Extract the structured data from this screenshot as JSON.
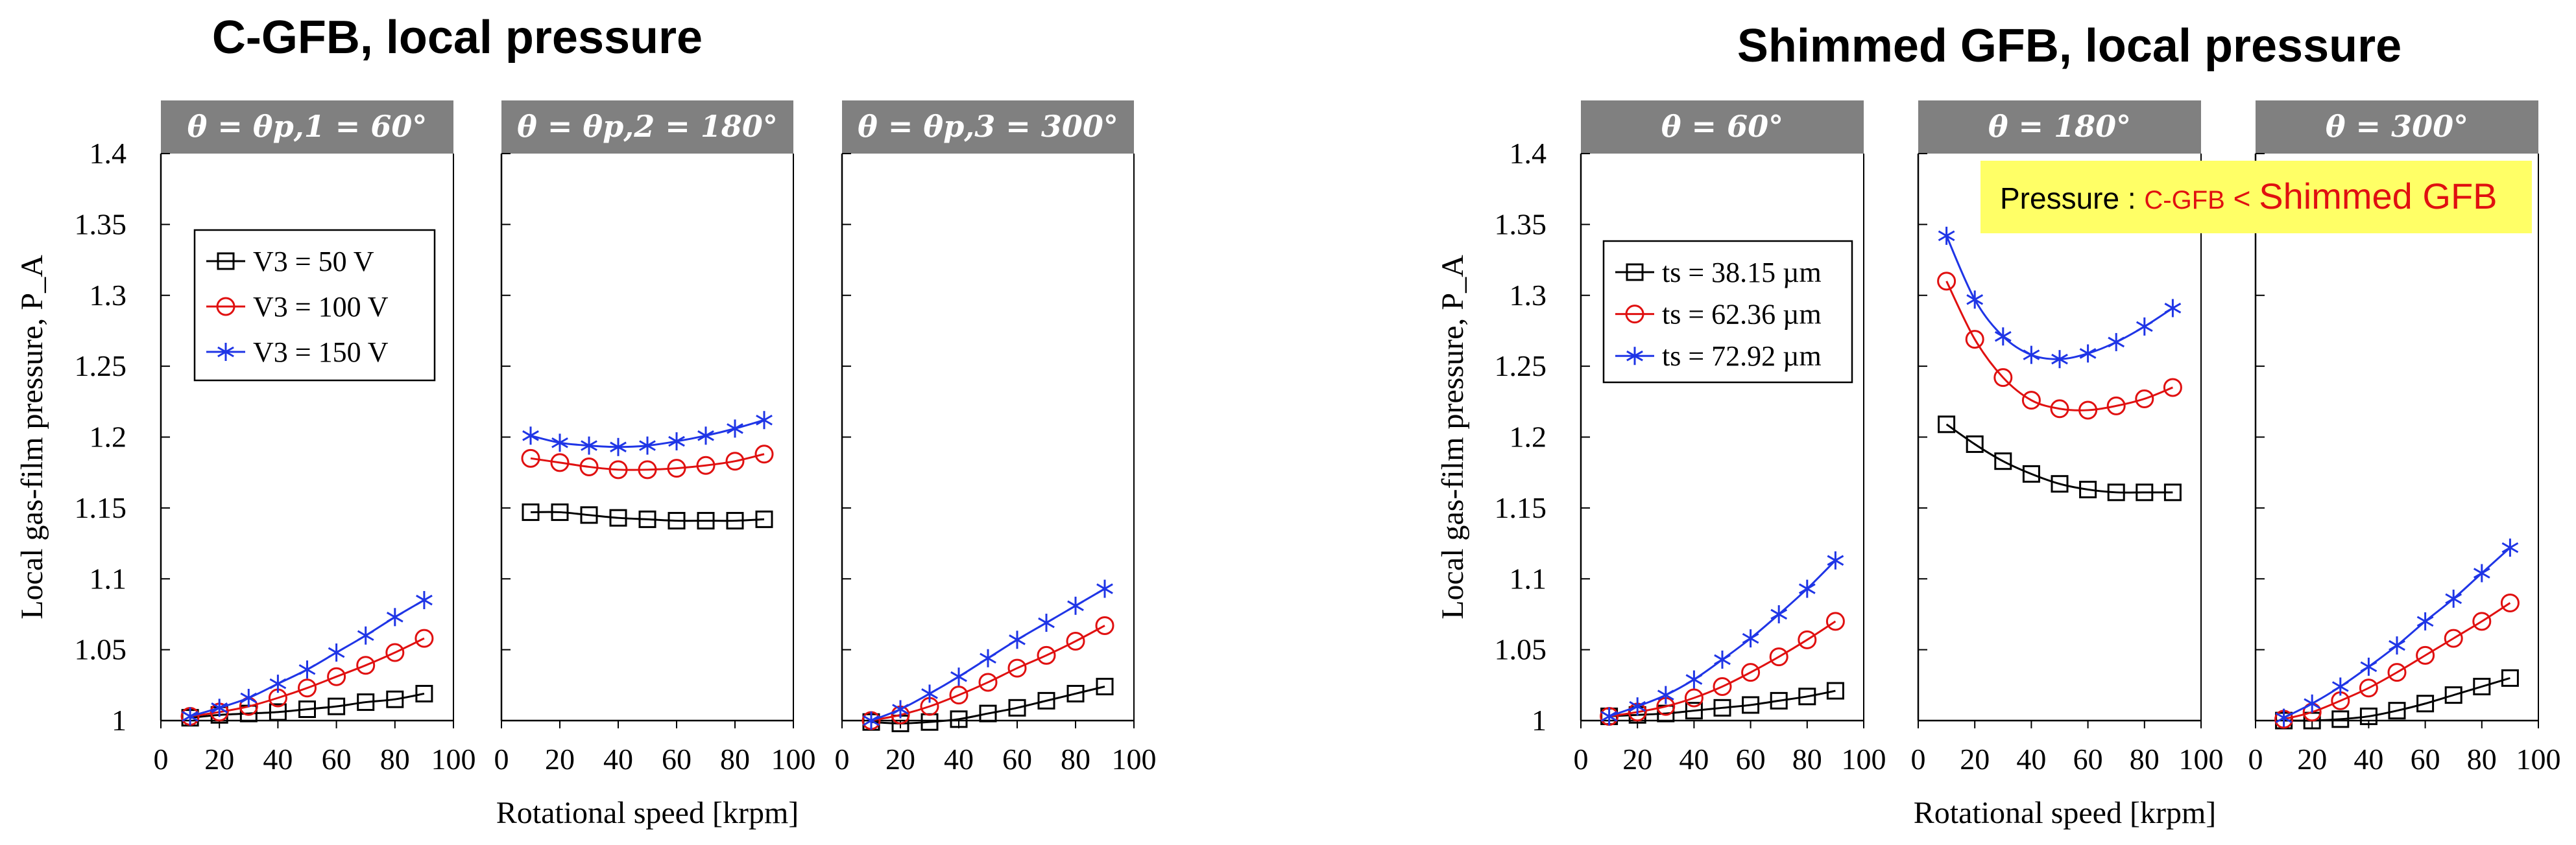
{
  "figure": {
    "left_title": "C-GFB, local pressure",
    "right_title": "Shimmed GFB, local pressure",
    "annotation": {
      "prefix": "Pressure : ",
      "c_gfb": "C-GFB",
      "lt": " < ",
      "shimmed": "Shimmed GFB"
    }
  },
  "chart_data": [
    {
      "type": "line",
      "group": "C-GFB, local pressure",
      "xlabel": "Rotational speed [krpm]",
      "ylabel": "Local gas-film pressure, P_A",
      "ylim": [
        1,
        1.4
      ],
      "yticks": [
        "1",
        "1.05",
        "1.1",
        "1.15",
        "1.2",
        "1.25",
        "1.3",
        "1.35",
        "1.4"
      ],
      "xlim": [
        0,
        100
      ],
      "xticks": [
        "0",
        "20",
        "40",
        "60",
        "80",
        "100"
      ],
      "x": [
        10,
        20,
        30,
        40,
        50,
        60,
        70,
        80,
        90
      ],
      "legend": [
        "V3 = 50 V",
        "V3 = 100 V",
        "V3 = 150 V"
      ],
      "panels": [
        {
          "title": "θ = θp,1 = 60°",
          "series": [
            {
              "name": "V3 = 50 V",
              "values": [
                1.002,
                1.004,
                1.005,
                1.006,
                1.008,
                1.01,
                1.013,
                1.015,
                1.019
              ]
            },
            {
              "name": "V3 = 100 V",
              "values": [
                1.003,
                1.006,
                1.01,
                1.016,
                1.023,
                1.031,
                1.039,
                1.048,
                1.058
              ]
            },
            {
              "name": "V3 = 150 V",
              "values": [
                1.003,
                1.009,
                1.016,
                1.026,
                1.036,
                1.048,
                1.06,
                1.073,
                1.085
              ]
            }
          ]
        },
        {
          "title": "θ = θp,2 = 180°",
          "series": [
            {
              "name": "V3 = 50 V",
              "values": [
                1.147,
                1.147,
                1.145,
                1.143,
                1.142,
                1.141,
                1.141,
                1.141,
                1.142
              ]
            },
            {
              "name": "V3 = 100 V",
              "values": [
                1.185,
                1.182,
                1.179,
                1.177,
                1.177,
                1.178,
                1.18,
                1.183,
                1.188
              ]
            },
            {
              "name": "V3 = 150 V",
              "values": [
                1.201,
                1.196,
                1.194,
                1.193,
                1.194,
                1.197,
                1.201,
                1.206,
                1.212
              ]
            }
          ]
        },
        {
          "title": "θ = θp,3 = 300°",
          "series": [
            {
              "name": "V3 = 50 V",
              "values": [
                0.999,
                0.998,
                0.999,
                1.001,
                1.005,
                1.009,
                1.014,
                1.019,
                1.024
              ]
            },
            {
              "name": "V3 = 100 V",
              "values": [
                1.0,
                1.004,
                1.01,
                1.018,
                1.027,
                1.037,
                1.046,
                1.056,
                1.067
              ]
            },
            {
              "name": "V3 = 150 V",
              "values": [
                1.0,
                1.008,
                1.019,
                1.031,
                1.044,
                1.057,
                1.069,
                1.081,
                1.093
              ]
            }
          ]
        }
      ]
    },
    {
      "type": "line",
      "group": "Shimmed GFB, local pressure",
      "xlabel": "Rotational speed [krpm]",
      "ylabel": "Local gas-film pressure, P_A",
      "ylim": [
        1,
        1.4
      ],
      "yticks": [
        "1",
        "1.05",
        "1.1",
        "1.15",
        "1.2",
        "1.25",
        "1.3",
        "1.35",
        "1.4"
      ],
      "xlim": [
        0,
        100
      ],
      "xticks": [
        "0",
        "20",
        "40",
        "60",
        "80",
        "100"
      ],
      "x": [
        10,
        20,
        30,
        40,
        50,
        60,
        70,
        80,
        90
      ],
      "legend": [
        "ts = 38.15 µm",
        "ts = 62.36 µm",
        "ts = 72.92 µm"
      ],
      "panels": [
        {
          "title": "θ = 60°",
          "series": [
            {
              "name": "ts = 38.15 µm",
              "values": [
                1.003,
                1.004,
                1.005,
                1.007,
                1.009,
                1.011,
                1.014,
                1.017,
                1.021
              ]
            },
            {
              "name": "ts = 62.36 µm",
              "values": [
                1.003,
                1.006,
                1.01,
                1.016,
                1.024,
                1.034,
                1.045,
                1.057,
                1.07
              ]
            },
            {
              "name": "ts = 72.92 µm",
              "values": [
                1.003,
                1.01,
                1.018,
                1.029,
                1.043,
                1.058,
                1.075,
                1.093,
                1.113
              ]
            }
          ]
        },
        {
          "title": "θ = 180°",
          "series": [
            {
              "name": "ts = 38.15 µm",
              "values": [
                1.209,
                1.195,
                1.183,
                1.174,
                1.167,
                1.163,
                1.161,
                1.161,
                1.161
              ]
            },
            {
              "name": "ts = 62.36 µm",
              "values": [
                1.31,
                1.269,
                1.242,
                1.226,
                1.22,
                1.219,
                1.222,
                1.227,
                1.235
              ]
            },
            {
              "name": "ts = 72.92 µm",
              "values": [
                1.342,
                1.297,
                1.271,
                1.258,
                1.255,
                1.259,
                1.267,
                1.278,
                1.291
              ]
            }
          ]
        },
        {
          "title": "θ = 300°",
          "series": [
            {
              "name": "ts = 38.15 µm",
              "values": [
                1.0,
                1.0,
                1.001,
                1.003,
                1.007,
                1.012,
                1.018,
                1.024,
                1.03
              ]
            },
            {
              "name": "ts = 62.36 µm",
              "values": [
                1.001,
                1.006,
                1.014,
                1.023,
                1.034,
                1.046,
                1.058,
                1.07,
                1.083
              ]
            },
            {
              "name": "ts = 72.92 µm",
              "values": [
                1.002,
                1.012,
                1.024,
                1.038,
                1.053,
                1.07,
                1.086,
                1.104,
                1.122
              ]
            }
          ]
        }
      ]
    }
  ]
}
